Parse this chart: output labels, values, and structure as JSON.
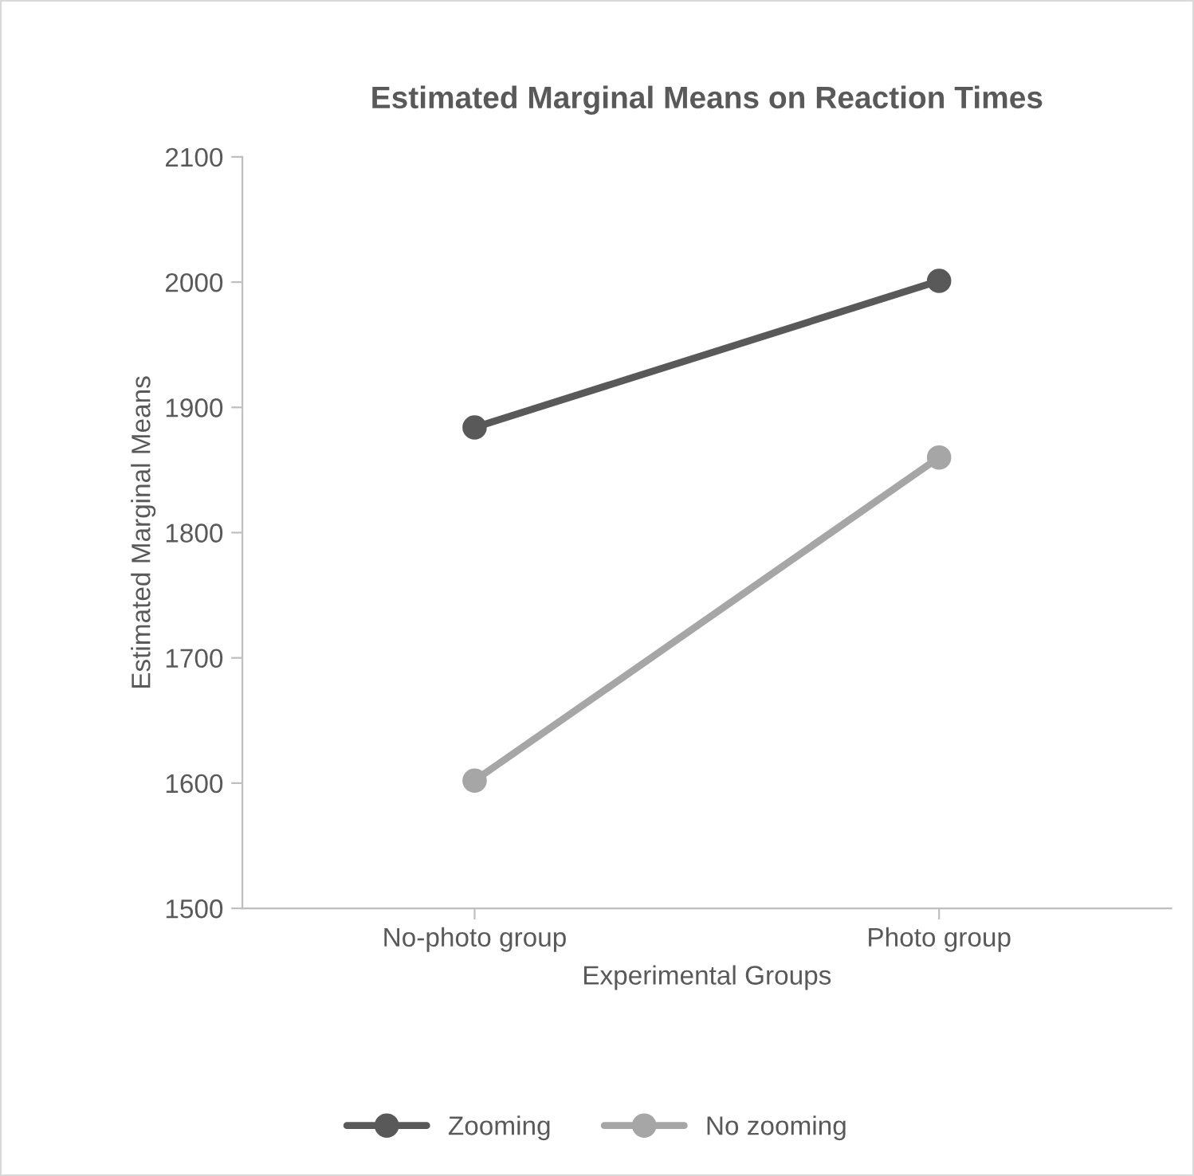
{
  "chart_data": {
    "type": "line",
    "title": "Estimated Marginal Means on Reaction Times",
    "xlabel": "Experimental Groups",
    "ylabel": "Estimated Marginal Means",
    "categories": [
      "No-photo group",
      "Photo group"
    ],
    "series": [
      {
        "name": "Zooming",
        "color": "#595959",
        "values": [
          1884,
          2001
        ]
      },
      {
        "name": "No zooming",
        "color": "#a6a6a6",
        "values": [
          1602,
          1860
        ]
      }
    ],
    "ylim": [
      1500,
      2100
    ],
    "yticks": [
      1500,
      1600,
      1700,
      1800,
      1900,
      2000,
      2100
    ],
    "grid": false,
    "legend": "bottom",
    "marker": "circle",
    "line_style": "solid"
  }
}
